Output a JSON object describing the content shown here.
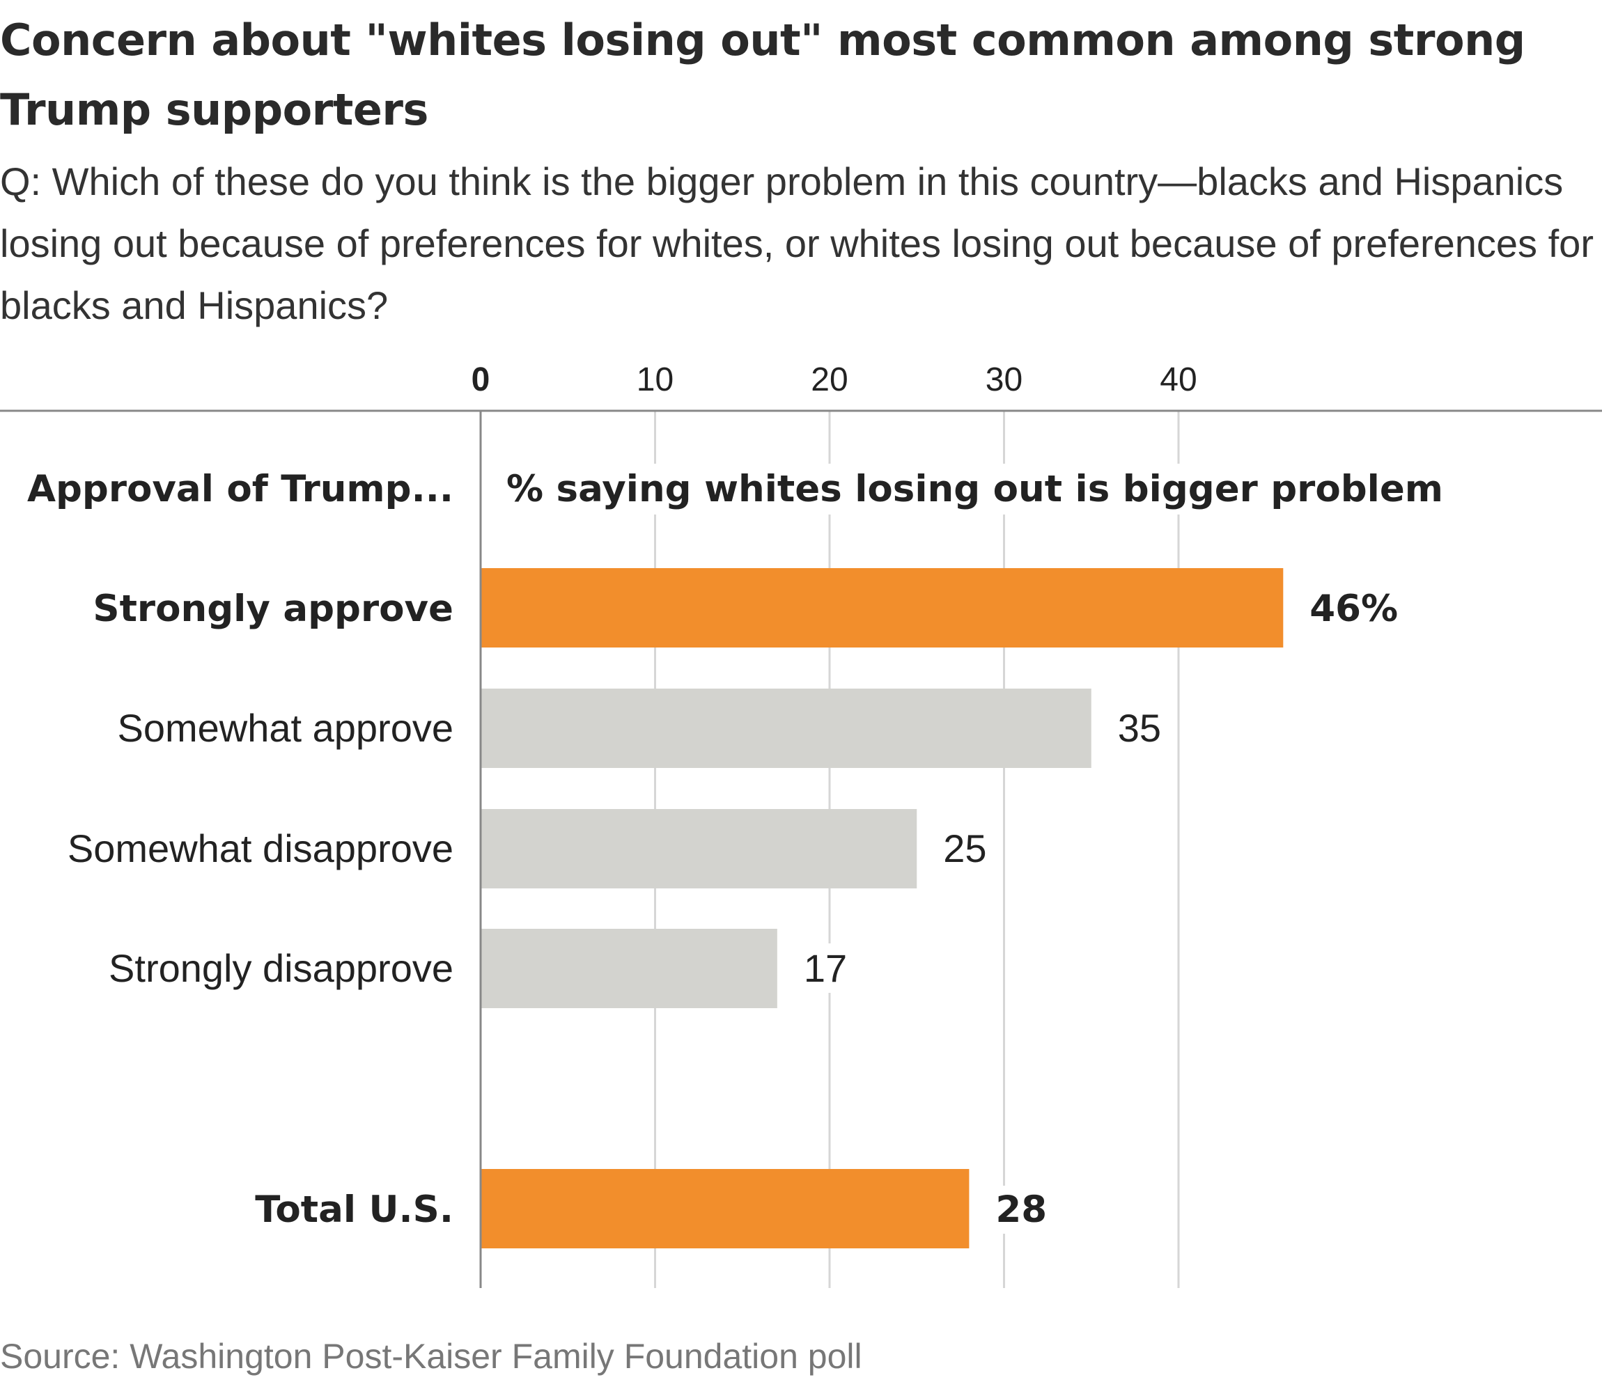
{
  "title": "Concern about \"whites losing out\" most common among strong Trump supporters",
  "subtitle": "Q: Which of these do you think is the bigger problem in this country—blacks and Hispanics losing out because of preferences for whites, or whites losing out because of preferences for blacks and Hispanics?",
  "source": "Source: Washington Post-Kaiser Family Foundation poll",
  "colors": {
    "highlight": "#f28e2c",
    "default": "#d3d3cf",
    "gridline": "#d6d6d6",
    "axis": "#888888"
  },
  "chart_data": {
    "type": "bar",
    "orientation": "horizontal",
    "category_header": "Approval of Trump...",
    "value_header": "% saying whites losing out is bigger problem",
    "x_ticks": [
      "0",
      "10",
      "20",
      "30",
      "40"
    ],
    "xlim": [
      0,
      50
    ],
    "grid": true,
    "categories": [
      {
        "label": "Strongly approve",
        "value": 46,
        "value_label": "46%",
        "highlight": true,
        "group": "approval"
      },
      {
        "label": "Somewhat approve",
        "value": 35,
        "value_label": "35",
        "highlight": false,
        "group": "approval"
      },
      {
        "label": "Somewhat disapprove",
        "value": 25,
        "value_label": "25",
        "highlight": false,
        "group": "approval"
      },
      {
        "label": "Strongly disapprove",
        "value": 17,
        "value_label": "17",
        "highlight": false,
        "group": "approval"
      },
      {
        "label": "Total U.S.",
        "value": 28,
        "value_label": "28",
        "highlight": true,
        "group": "total"
      }
    ]
  }
}
